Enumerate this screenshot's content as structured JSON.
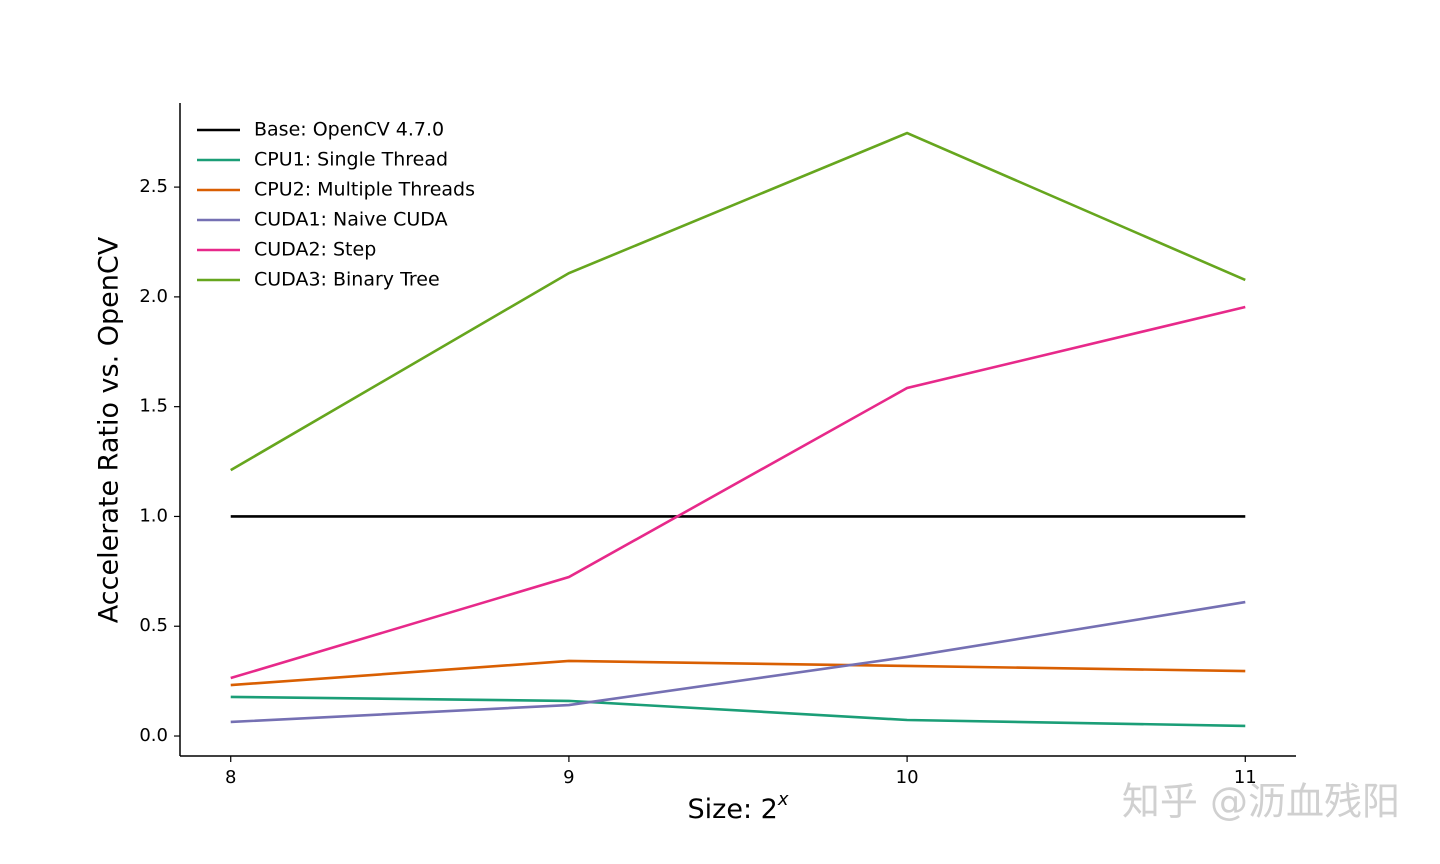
{
  "chart_data": {
    "type": "line",
    "xlabel": "Size: 2",
    "xlabel_exponent": "x",
    "ylabel": "Accelerate Ratio vs. OpenCV",
    "x": [
      8,
      9,
      10,
      11
    ],
    "xlim": [
      7.85,
      11.15
    ],
    "xticks": [
      8,
      9,
      10,
      11
    ],
    "ylim": [
      -0.091,
      2.883
    ],
    "yticks": [
      {
        "value": 0,
        "label": "0.0"
      },
      0.5,
      {
        "value": 1,
        "label": "1.0"
      },
      1.5,
      {
        "value": 2,
        "label": "2.0"
      },
      2.5
    ],
    "legend": "upper-left",
    "grid": false,
    "series": [
      {
        "name": "Base: OpenCV 4.7.0",
        "color": "#000000",
        "values": [
          1,
          1,
          1,
          1
        ]
      },
      {
        "name": "CPU1: Single Thread",
        "color": "#1b9e77",
        "values": [
          0.178,
          0.16,
          0.073,
          0.046
        ]
      },
      {
        "name": "CPU2: Multiple Threads",
        "color": "#d95f02",
        "values": [
          0.232,
          0.342,
          0.319,
          0.296
        ]
      },
      {
        "name": "CUDA1: Naive CUDA",
        "color": "#7570b3",
        "values": [
          0.064,
          0.141,
          0.36,
          0.61
        ]
      },
      {
        "name": "CUDA2: Step",
        "color": "#e7298a",
        "values": [
          0.264,
          0.724,
          1.585,
          1.954
        ]
      },
      {
        "name": "CUDA3: Binary Tree",
        "color": "#66a61e",
        "values": [
          1.211,
          2.108,
          2.746,
          2.077
        ]
      }
    ],
    "watermark": "知乎 @沥血残阳"
  }
}
